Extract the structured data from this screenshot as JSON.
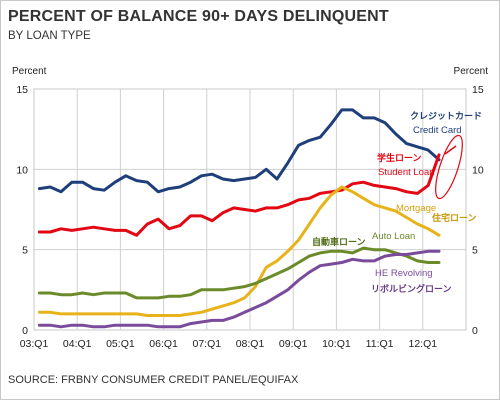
{
  "header": {
    "title": "PERCENT OF BALANCE 90+ DAYS DELINQUENT",
    "subtitle": "BY LOAN TYPE"
  },
  "footer": {
    "source": "SOURCE: FRBNY CONSUMER CREDIT PANEL/EQUIFAX"
  },
  "chart_data": {
    "type": "line",
    "title": "PERCENT OF BALANCE 90+ DAYS DELINQUENT",
    "subtitle": "BY LOAN TYPE",
    "ylabel_left": "Percent",
    "ylabel_right": "Percent",
    "ylim": [
      0,
      15
    ],
    "yticks": [
      0,
      5,
      10,
      15
    ],
    "grid": true,
    "x_tick_labels": [
      "03:Q1",
      "04:Q1",
      "05:Q1",
      "06:Q1",
      "07:Q1",
      "08:Q1",
      "09:Q1",
      "10:Q1",
      "11:Q1",
      "12:Q1"
    ],
    "x_periods": [
      "03:Q1",
      "03:Q2",
      "03:Q3",
      "03:Q4",
      "04:Q1",
      "04:Q2",
      "04:Q3",
      "04:Q4",
      "05:Q1",
      "05:Q2",
      "05:Q3",
      "05:Q4",
      "06:Q1",
      "06:Q2",
      "06:Q3",
      "06:Q4",
      "07:Q1",
      "07:Q2",
      "07:Q3",
      "07:Q4",
      "08:Q1",
      "08:Q2",
      "08:Q3",
      "08:Q4",
      "09:Q1",
      "09:Q2",
      "09:Q3",
      "09:Q4",
      "10:Q1",
      "10:Q2",
      "10:Q3",
      "10:Q4",
      "11:Q1",
      "11:Q2",
      "11:Q3",
      "11:Q4",
      "12:Q1",
      "12:Q2"
    ],
    "series": [
      {
        "name": "Credit Card",
        "name_ja": "クレジットカード",
        "color": "#1f3f7a",
        "values": [
          8.8,
          8.9,
          8.6,
          9.2,
          9.2,
          8.8,
          8.7,
          9.2,
          9.6,
          9.3,
          9.2,
          8.6,
          8.8,
          8.9,
          9.2,
          9.6,
          9.7,
          9.4,
          9.3,
          9.4,
          9.5,
          10.0,
          9.4,
          10.4,
          11.5,
          11.8,
          12.0,
          12.8,
          13.7,
          13.7,
          13.2,
          13.2,
          12.9,
          12.2,
          11.6,
          11.4,
          11.2,
          10.6
        ]
      },
      {
        "name": "Student Loan",
        "name_ja": "学生ローン",
        "color": "#e30613",
        "values": [
          6.1,
          6.1,
          6.3,
          6.2,
          6.3,
          6.4,
          6.3,
          6.2,
          6.2,
          5.9,
          6.6,
          6.9,
          6.3,
          6.5,
          7.1,
          7.1,
          6.8,
          7.3,
          7.6,
          7.5,
          7.4,
          7.6,
          7.6,
          7.8,
          8.1,
          8.2,
          8.5,
          8.6,
          8.7,
          9.1,
          9.2,
          9.0,
          8.9,
          8.8,
          8.6,
          8.5,
          9.0,
          10.9
        ]
      },
      {
        "name": "Mortgage",
        "name_ja": "住宅ローン",
        "color": "#e8b21a",
        "values": [
          1.1,
          1.1,
          1.0,
          1.0,
          1.0,
          1.0,
          1.0,
          1.0,
          1.0,
          1.0,
          0.9,
          0.9,
          0.9,
          0.9,
          1.0,
          1.1,
          1.3,
          1.5,
          1.7,
          2.0,
          2.7,
          3.9,
          4.3,
          4.9,
          5.6,
          6.6,
          7.6,
          8.4,
          8.9,
          8.6,
          8.2,
          7.8,
          7.6,
          7.4,
          7.0,
          6.6,
          6.3,
          5.9
        ]
      },
      {
        "name": "Auto Loan",
        "name_ja": "自動車ローン",
        "color": "#6b8a2a",
        "values": [
          2.3,
          2.3,
          2.2,
          2.2,
          2.3,
          2.2,
          2.3,
          2.3,
          2.3,
          2.0,
          2.0,
          2.0,
          2.1,
          2.1,
          2.2,
          2.5,
          2.5,
          2.5,
          2.6,
          2.7,
          2.9,
          3.2,
          3.5,
          3.8,
          4.2,
          4.6,
          4.8,
          4.9,
          4.9,
          4.8,
          5.1,
          5.0,
          5.0,
          4.8,
          4.6,
          4.3,
          4.2,
          4.2
        ]
      },
      {
        "name": "HE Revolving",
        "name_ja": "リボルビングローン",
        "color": "#7b4b9b",
        "values": [
          0.3,
          0.3,
          0.2,
          0.3,
          0.3,
          0.2,
          0.2,
          0.3,
          0.3,
          0.3,
          0.3,
          0.2,
          0.2,
          0.2,
          0.4,
          0.5,
          0.6,
          0.6,
          0.8,
          1.1,
          1.4,
          1.7,
          2.1,
          2.5,
          3.1,
          3.6,
          4.0,
          4.1,
          4.2,
          4.4,
          4.3,
          4.3,
          4.6,
          4.7,
          4.7,
          4.8,
          4.9,
          4.9
        ]
      }
    ]
  }
}
